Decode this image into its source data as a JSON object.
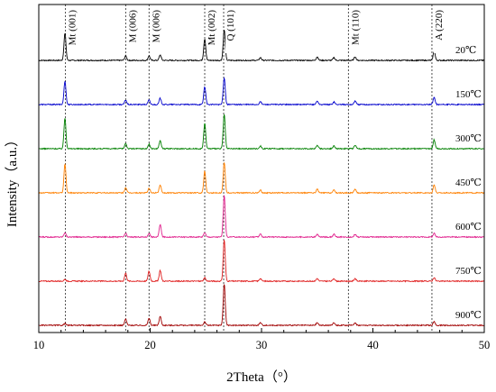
{
  "chart_data": {
    "type": "line",
    "xlabel": "2Theta（°）",
    "ylabel": "Intensity（a.u.）",
    "xlim": [
      10,
      50
    ],
    "x_ticks": [
      "10",
      "20",
      "30",
      "40",
      "50"
    ],
    "grid": false,
    "reference_lines": [
      {
        "x": 12.4,
        "label": "Mt (001)"
      },
      {
        "x": 17.8,
        "label": "M (006)"
      },
      {
        "x": 19.9,
        "label": "M (006)"
      },
      {
        "x": 24.9,
        "label": "Mt (002)"
      },
      {
        "x": 26.6,
        "label": "Q (101)"
      },
      {
        "x": 37.8,
        "label": "Mt (110)"
      },
      {
        "x": 45.3,
        "label": "A (220)"
      }
    ],
    "series": [
      {
        "name": "20℃",
        "color": "#000000",
        "baseline": 0,
        "peaks": [
          [
            12.35,
            30
          ],
          [
            17.8,
            5
          ],
          [
            19.9,
            5
          ],
          [
            20.9,
            6
          ],
          [
            24.9,
            24
          ],
          [
            26.65,
            34
          ],
          [
            29.9,
            3
          ],
          [
            35.0,
            4
          ],
          [
            36.5,
            3
          ],
          [
            38.4,
            4
          ],
          [
            45.5,
            10
          ]
        ]
      },
      {
        "name": "150℃",
        "color": "#0000cc",
        "baseline": 1,
        "peaks": [
          [
            12.35,
            26
          ],
          [
            17.8,
            5
          ],
          [
            19.9,
            5
          ],
          [
            20.9,
            7
          ],
          [
            24.9,
            20
          ],
          [
            26.65,
            30
          ],
          [
            29.9,
            3
          ],
          [
            35.0,
            4
          ],
          [
            36.5,
            3
          ],
          [
            38.4,
            4
          ],
          [
            45.5,
            8
          ]
        ]
      },
      {
        "name": "300℃",
        "color": "#008000",
        "baseline": 2,
        "peaks": [
          [
            12.35,
            34
          ],
          [
            17.8,
            6
          ],
          [
            19.9,
            5
          ],
          [
            20.9,
            9
          ],
          [
            24.9,
            28
          ],
          [
            26.65,
            38
          ],
          [
            29.9,
            3
          ],
          [
            35.0,
            4
          ],
          [
            36.5,
            3
          ],
          [
            38.4,
            4
          ],
          [
            45.5,
            10
          ]
        ]
      },
      {
        "name": "450℃",
        "color": "#ff8000",
        "baseline": 3,
        "peaks": [
          [
            12.35,
            32
          ],
          [
            17.8,
            6
          ],
          [
            19.9,
            5
          ],
          [
            20.9,
            9
          ],
          [
            24.9,
            24
          ],
          [
            26.65,
            34
          ],
          [
            29.9,
            3
          ],
          [
            35.0,
            4
          ],
          [
            36.5,
            3
          ],
          [
            38.4,
            4
          ],
          [
            45.5,
            9
          ]
        ]
      },
      {
        "name": "600℃",
        "color": "#e0208c",
        "baseline": 4,
        "peaks": [
          [
            12.35,
            5
          ],
          [
            17.8,
            4
          ],
          [
            19.9,
            4
          ],
          [
            20.9,
            14
          ],
          [
            24.9,
            5
          ],
          [
            26.65,
            46
          ],
          [
            29.9,
            3
          ],
          [
            35.0,
            3
          ],
          [
            36.5,
            3
          ],
          [
            38.4,
            3
          ],
          [
            45.5,
            4
          ]
        ]
      },
      {
        "name": "750℃",
        "color": "#e02020",
        "baseline": 5,
        "peaks": [
          [
            12.35,
            2
          ],
          [
            17.8,
            9
          ],
          [
            19.9,
            11
          ],
          [
            20.9,
            12
          ],
          [
            24.9,
            4
          ],
          [
            26.65,
            46
          ],
          [
            29.9,
            3
          ],
          [
            35.0,
            3
          ],
          [
            36.5,
            3
          ],
          [
            38.4,
            3
          ],
          [
            45.5,
            4
          ]
        ]
      },
      {
        "name": "900℃",
        "color": "#a00000",
        "baseline": 6,
        "peaks": [
          [
            12.35,
            2
          ],
          [
            17.8,
            7
          ],
          [
            19.9,
            8
          ],
          [
            20.9,
            10
          ],
          [
            24.9,
            4
          ],
          [
            26.65,
            46
          ],
          [
            29.9,
            3
          ],
          [
            35.0,
            3
          ],
          [
            36.5,
            3
          ],
          [
            38.4,
            3
          ],
          [
            45.5,
            4
          ]
        ]
      }
    ]
  }
}
